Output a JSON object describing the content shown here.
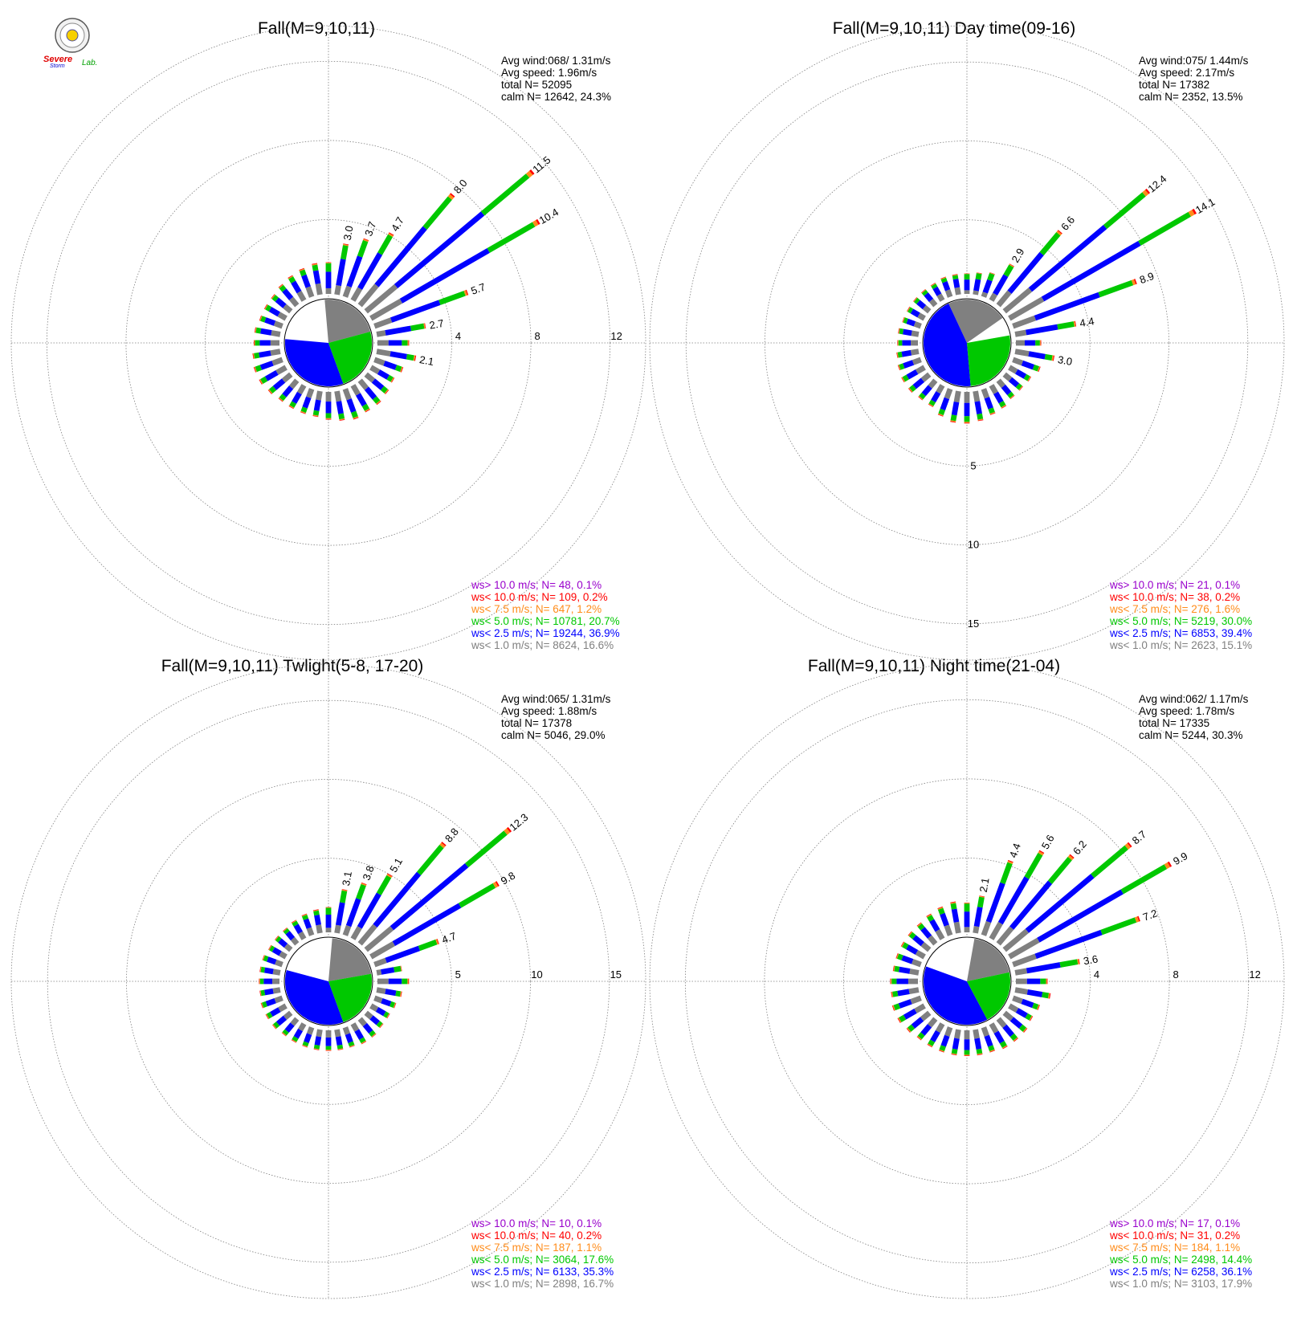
{
  "logo": {
    "text_lines": [
      "Severe",
      "Storm",
      "Lab."
    ]
  },
  "colors": {
    "axis": "#7f7f7f",
    "calm": "#808080",
    "ws_lt_1": "#808080",
    "ws_lt_2_5": "#0000ff",
    "ws_lt_5": "#00c800",
    "ws_lt_7_5": "#ff8c1a",
    "ws_lt_10": "#ff0000",
    "ws_gt_10": "#9900cc"
  },
  "chart_data": [
    {
      "type": "wind-rose",
      "title": "Fall(M=9,10,11)",
      "stats": [
        "Avg wind:068/ 1.31m/s",
        "Avg speed: 1.96m/s",
        "total N=      52095",
        "calm N=  12642,  24.3%"
      ],
      "radial_ticks": [
        4,
        8,
        12
      ],
      "radial_tick_labels": [
        "4",
        "8",
        "12"
      ],
      "radial_max": 13.8,
      "radial_tick_axis": "east",
      "calm_pie": [
        {
          "category": "calm",
          "start_deg": -5,
          "end_deg": 75
        },
        {
          "category": "ws<2.5",
          "start_deg": 160,
          "end_deg": 275
        },
        {
          "category": "ws<5.0",
          "start_deg": 75,
          "end_deg": 160
        }
      ],
      "sectors": [
        {
          "dir_deg": 0,
          "total": 1.6
        },
        {
          "dir_deg": 10,
          "total": 2.6,
          "label": "3.0"
        },
        {
          "dir_deg": 20,
          "total": 3.1,
          "label": "3.7"
        },
        {
          "dir_deg": 30,
          "total": 3.9,
          "label": "4.7"
        },
        {
          "dir_deg": 40,
          "total": 7.3,
          "label": "8.0"
        },
        {
          "dir_deg": 50,
          "total": 11.0,
          "label": "11.5"
        },
        {
          "dir_deg": 60,
          "total": 9.8,
          "label": "10.4"
        },
        {
          "dir_deg": 70,
          "total": 5.0,
          "label": "5.7"
        },
        {
          "dir_deg": 80,
          "total": 2.5,
          "label": "2.7"
        },
        {
          "dir_deg": 90,
          "total": 1.6
        },
        {
          "dir_deg": 100,
          "total": 2.0,
          "label": "2.1"
        },
        {
          "dir_deg": 110,
          "total": 1.5
        },
        {
          "dir_deg": 120,
          "total": 1.3
        },
        {
          "dir_deg": 130,
          "total": 1.4
        },
        {
          "dir_deg": 140,
          "total": 1.5
        },
        {
          "dir_deg": 150,
          "total": 1.5
        },
        {
          "dir_deg": 160,
          "total": 1.6
        },
        {
          "dir_deg": 170,
          "total": 1.5
        },
        {
          "dir_deg": 180,
          "total": 1.4
        },
        {
          "dir_deg": 190,
          "total": 1.3
        },
        {
          "dir_deg": 200,
          "total": 1.3
        },
        {
          "dir_deg": 210,
          "total": 1.3
        },
        {
          "dir_deg": 220,
          "total": 1.3
        },
        {
          "dir_deg": 230,
          "total": 1.4
        },
        {
          "dir_deg": 240,
          "total": 1.5
        },
        {
          "dir_deg": 250,
          "total": 1.5
        },
        {
          "dir_deg": 260,
          "total": 1.4
        },
        {
          "dir_deg": 270,
          "total": 1.3
        },
        {
          "dir_deg": 280,
          "total": 1.3
        },
        {
          "dir_deg": 290,
          "total": 1.2
        },
        {
          "dir_deg": 300,
          "total": 1.2
        },
        {
          "dir_deg": 310,
          "total": 1.2
        },
        {
          "dir_deg": 320,
          "total": 1.3
        },
        {
          "dir_deg": 330,
          "total": 1.4
        },
        {
          "dir_deg": 340,
          "total": 1.5
        },
        {
          "dir_deg": 350,
          "total": 1.6
        }
      ],
      "legend": [
        {
          "text": "ws> 10.0 m/s; N=    48,  0.1%",
          "color": "#9900cc"
        },
        {
          "text": "ws< 10.0 m/s; N=   109,  0.2%",
          "color": "#ff0000"
        },
        {
          "text": "ws<  7.5 m/s; N=   647,  1.2%",
          "color": "#ff8c1a"
        },
        {
          "text": "ws<  5.0 m/s; N= 10781, 20.7%",
          "color": "#00c800"
        },
        {
          "text": "ws<  2.5 m/s; N= 19244, 36.9%",
          "color": "#0000ff"
        },
        {
          "text": "ws<  1.0 m/s; N=  8624, 16.6%",
          "color": "#808080"
        }
      ]
    },
    {
      "type": "wind-rose",
      "title": "Fall(M=9,10,11) Day time(09-16)",
      "stats": [
        "Avg wind:075/ 1.44m/s",
        "Avg speed: 2.17m/s",
        "total N=      17382",
        "calm N=   2352,  13.5%"
      ],
      "radial_ticks": [
        5,
        10,
        15
      ],
      "radial_tick_labels": [
        "5",
        "10",
        "15"
      ],
      "radial_max": 17.3,
      "radial_tick_axis": "south",
      "calm_pie": [
        {
          "category": "calm",
          "start_deg": -25,
          "end_deg": 55
        },
        {
          "category": "ws<2.5",
          "start_deg": 175,
          "end_deg": 335
        },
        {
          "category": "ws<5.0",
          "start_deg": 80,
          "end_deg": 175
        }
      ],
      "sectors": [
        {
          "dir_deg": 0,
          "total": 1.3
        },
        {
          "dir_deg": 10,
          "total": 1.4
        },
        {
          "dir_deg": 20,
          "total": 1.6
        },
        {
          "dir_deg": 30,
          "total": 2.6,
          "label": "2.9"
        },
        {
          "dir_deg": 40,
          "total": 6.1,
          "label": "6.6"
        },
        {
          "dir_deg": 50,
          "total": 11.9,
          "label": "12.4"
        },
        {
          "dir_deg": 60,
          "total": 13.6,
          "label": "14.1"
        },
        {
          "dir_deg": 70,
          "total": 8.3,
          "label": "8.9"
        },
        {
          "dir_deg": 80,
          "total": 3.9,
          "label": "4.4"
        },
        {
          "dir_deg": 90,
          "total": 1.6
        },
        {
          "dir_deg": 100,
          "total": 2.5,
          "label": "3.0"
        },
        {
          "dir_deg": 110,
          "total": 1.8
        },
        {
          "dir_deg": 120,
          "total": 1.5
        },
        {
          "dir_deg": 130,
          "total": 1.4
        },
        {
          "dir_deg": 140,
          "total": 1.4
        },
        {
          "dir_deg": 150,
          "total": 1.6
        },
        {
          "dir_deg": 160,
          "total": 1.7
        },
        {
          "dir_deg": 170,
          "total": 1.9
        },
        {
          "dir_deg": 180,
          "total": 2.0
        },
        {
          "dir_deg": 190,
          "total": 2.0
        },
        {
          "dir_deg": 200,
          "total": 1.8
        },
        {
          "dir_deg": 210,
          "total": 1.5
        },
        {
          "dir_deg": 220,
          "total": 1.5
        },
        {
          "dir_deg": 230,
          "total": 1.6
        },
        {
          "dir_deg": 240,
          "total": 1.6
        },
        {
          "dir_deg": 250,
          "total": 1.5
        },
        {
          "dir_deg": 260,
          "total": 1.4
        },
        {
          "dir_deg": 270,
          "total": 1.3
        },
        {
          "dir_deg": 280,
          "total": 1.3
        },
        {
          "dir_deg": 290,
          "total": 1.2
        },
        {
          "dir_deg": 300,
          "total": 1.2
        },
        {
          "dir_deg": 310,
          "total": 1.2
        },
        {
          "dir_deg": 320,
          "total": 1.2
        },
        {
          "dir_deg": 330,
          "total": 1.2
        },
        {
          "dir_deg": 340,
          "total": 1.3
        },
        {
          "dir_deg": 350,
          "total": 1.3
        }
      ],
      "legend": [
        {
          "text": "ws> 10.0 m/s; N=    21,  0.1%",
          "color": "#9900cc"
        },
        {
          "text": "ws< 10.0 m/s; N=    38,  0.2%",
          "color": "#ff0000"
        },
        {
          "text": "ws<  7.5 m/s; N=   276,  1.6%",
          "color": "#ff8c1a"
        },
        {
          "text": "ws<  5.0 m/s; N=  5219, 30.0%",
          "color": "#00c800"
        },
        {
          "text": "ws<  2.5 m/s; N=  6853, 39.4%",
          "color": "#0000ff"
        },
        {
          "text": "ws<  1.0 m/s; N=  2623, 15.1%",
          "color": "#808080"
        }
      ]
    },
    {
      "type": "wind-rose",
      "title": "Fall(M=9,10,11) Twlight(5-8, 17-20)",
      "stats": [
        "Avg wind:065/ 1.31m/s",
        "Avg speed: 1.88m/s",
        "total N=      17378",
        "calm N=   5046,  29.0%"
      ],
      "radial_ticks": [
        5,
        10,
        15
      ],
      "radial_tick_labels": [
        "5",
        "10",
        "15"
      ],
      "radial_max": 17.3,
      "radial_tick_axis": "east",
      "calm_pie": [
        {
          "category": "calm",
          "start_deg": 5,
          "end_deg": 80
        },
        {
          "category": "ws<2.5",
          "start_deg": 160,
          "end_deg": 285
        },
        {
          "category": "ws<5.0",
          "start_deg": 80,
          "end_deg": 160
        }
      ],
      "sectors": [
        {
          "dir_deg": 0,
          "total": 1.6
        },
        {
          "dir_deg": 10,
          "total": 2.8,
          "label": "3.1"
        },
        {
          "dir_deg": 20,
          "total": 3.5,
          "label": "3.8"
        },
        {
          "dir_deg": 30,
          "total": 4.7,
          "label": "5.1"
        },
        {
          "dir_deg": 40,
          "total": 8.3,
          "label": "8.8"
        },
        {
          "dir_deg": 50,
          "total": 11.9,
          "label": "12.3"
        },
        {
          "dir_deg": 60,
          "total": 9.3,
          "label": "9.8"
        },
        {
          "dir_deg": 70,
          "total": 4.3,
          "label": "4.7"
        },
        {
          "dir_deg": 80,
          "total": 1.6
        },
        {
          "dir_deg": 90,
          "total": 2.0
        },
        {
          "dir_deg": 100,
          "total": 1.6
        },
        {
          "dir_deg": 110,
          "total": 1.4
        },
        {
          "dir_deg": 120,
          "total": 1.3
        },
        {
          "dir_deg": 130,
          "total": 1.3
        },
        {
          "dir_deg": 140,
          "total": 1.4
        },
        {
          "dir_deg": 150,
          "total": 1.4
        },
        {
          "dir_deg": 160,
          "total": 1.3
        },
        {
          "dir_deg": 170,
          "total": 1.3
        },
        {
          "dir_deg": 180,
          "total": 1.3
        },
        {
          "dir_deg": 190,
          "total": 1.3
        },
        {
          "dir_deg": 200,
          "total": 1.3
        },
        {
          "dir_deg": 210,
          "total": 1.3
        },
        {
          "dir_deg": 220,
          "total": 1.3
        },
        {
          "dir_deg": 230,
          "total": 1.4
        },
        {
          "dir_deg": 240,
          "total": 1.4
        },
        {
          "dir_deg": 250,
          "total": 1.4
        },
        {
          "dir_deg": 260,
          "total": 1.3
        },
        {
          "dir_deg": 270,
          "total": 1.3
        },
        {
          "dir_deg": 280,
          "total": 1.3
        },
        {
          "dir_deg": 290,
          "total": 1.3
        },
        {
          "dir_deg": 300,
          "total": 1.2
        },
        {
          "dir_deg": 310,
          "total": 1.2
        },
        {
          "dir_deg": 320,
          "total": 1.2
        },
        {
          "dir_deg": 330,
          "total": 1.3
        },
        {
          "dir_deg": 340,
          "total": 1.4
        },
        {
          "dir_deg": 350,
          "total": 1.5
        }
      ],
      "legend": [
        {
          "text": "ws> 10.0 m/s; N=    10,  0.1%",
          "color": "#9900cc"
        },
        {
          "text": "ws< 10.0 m/s; N=    40,  0.2%",
          "color": "#ff0000"
        },
        {
          "text": "ws<  7.5 m/s; N=   187,  1.1%",
          "color": "#ff8c1a"
        },
        {
          "text": "ws<  5.0 m/s; N=  3064, 17.6%",
          "color": "#00c800"
        },
        {
          "text": "ws<  2.5 m/s; N=  6133, 35.3%",
          "color": "#0000ff"
        },
        {
          "text": "ws<  1.0 m/s; N=  2898, 16.7%",
          "color": "#808080"
        }
      ]
    },
    {
      "type": "wind-rose",
      "title": "Fall(M=9,10,11) Night time(21-04)",
      "stats": [
        "Avg wind:062/ 1.17m/s",
        "Avg speed: 1.78m/s",
        "total N=      17335",
        "calm N=   5244,  30.3%"
      ],
      "radial_ticks": [
        4,
        8,
        12
      ],
      "radial_tick_labels": [
        "4",
        "8",
        "12"
      ],
      "radial_max": 13.8,
      "radial_tick_axis": "east",
      "calm_pie": [
        {
          "category": "calm",
          "start_deg": 10,
          "end_deg": 78
        },
        {
          "category": "ws<2.5",
          "start_deg": 152,
          "end_deg": 290
        },
        {
          "category": "ws<5.0",
          "start_deg": 78,
          "end_deg": 152
        }
      ],
      "sectors": [
        {
          "dir_deg": 0,
          "total": 1.5
        },
        {
          "dir_deg": 10,
          "total": 1.9,
          "label": "2.1"
        },
        {
          "dir_deg": 20,
          "total": 4.0,
          "label": "4.4"
        },
        {
          "dir_deg": 30,
          "total": 5.1,
          "label": "5.6"
        },
        {
          "dir_deg": 40,
          "total": 5.8,
          "label": "6.2"
        },
        {
          "dir_deg": 50,
          "total": 8.3,
          "label": "8.7"
        },
        {
          "dir_deg": 60,
          "total": 9.4,
          "label": "9.9"
        },
        {
          "dir_deg": 70,
          "total": 6.8,
          "label": "7.2"
        },
        {
          "dir_deg": 80,
          "total": 3.3,
          "label": "3.6"
        },
        {
          "dir_deg": 90,
          "total": 1.6
        },
        {
          "dir_deg": 100,
          "total": 1.8
        },
        {
          "dir_deg": 110,
          "total": 1.4
        },
        {
          "dir_deg": 120,
          "total": 1.3
        },
        {
          "dir_deg": 130,
          "total": 1.4
        },
        {
          "dir_deg": 140,
          "total": 1.4
        },
        {
          "dir_deg": 150,
          "total": 1.4
        },
        {
          "dir_deg": 160,
          "total": 1.3
        },
        {
          "dir_deg": 170,
          "total": 1.3
        },
        {
          "dir_deg": 180,
          "total": 1.3
        },
        {
          "dir_deg": 190,
          "total": 1.3
        },
        {
          "dir_deg": 200,
          "total": 1.3
        },
        {
          "dir_deg": 210,
          "total": 1.3
        },
        {
          "dir_deg": 220,
          "total": 1.3
        },
        {
          "dir_deg": 230,
          "total": 1.4
        },
        {
          "dir_deg": 240,
          "total": 1.5
        },
        {
          "dir_deg": 250,
          "total": 1.5
        },
        {
          "dir_deg": 260,
          "total": 1.4
        },
        {
          "dir_deg": 270,
          "total": 1.4
        },
        {
          "dir_deg": 280,
          "total": 1.3
        },
        {
          "dir_deg": 290,
          "total": 1.3
        },
        {
          "dir_deg": 300,
          "total": 1.3
        },
        {
          "dir_deg": 310,
          "total": 1.3
        },
        {
          "dir_deg": 320,
          "total": 1.3
        },
        {
          "dir_deg": 330,
          "total": 1.4
        },
        {
          "dir_deg": 340,
          "total": 1.5
        },
        {
          "dir_deg": 350,
          "total": 1.6
        }
      ],
      "legend": [
        {
          "text": "ws> 10.0 m/s; N=    17,  0.1%",
          "color": "#9900cc"
        },
        {
          "text": "ws< 10.0 m/s; N=    31,  0.2%",
          "color": "#ff0000"
        },
        {
          "text": "ws<  7.5 m/s; N=   184,  1.1%",
          "color": "#ff8c1a"
        },
        {
          "text": "ws<  5.0 m/s; N=  2498, 14.4%",
          "color": "#00c800"
        },
        {
          "text": "ws<  2.5 m/s; N=  6258, 36.1%",
          "color": "#0000ff"
        },
        {
          "text": "ws<  1.0 m/s; N=  3103, 17.9%",
          "color": "#808080"
        }
      ]
    }
  ]
}
